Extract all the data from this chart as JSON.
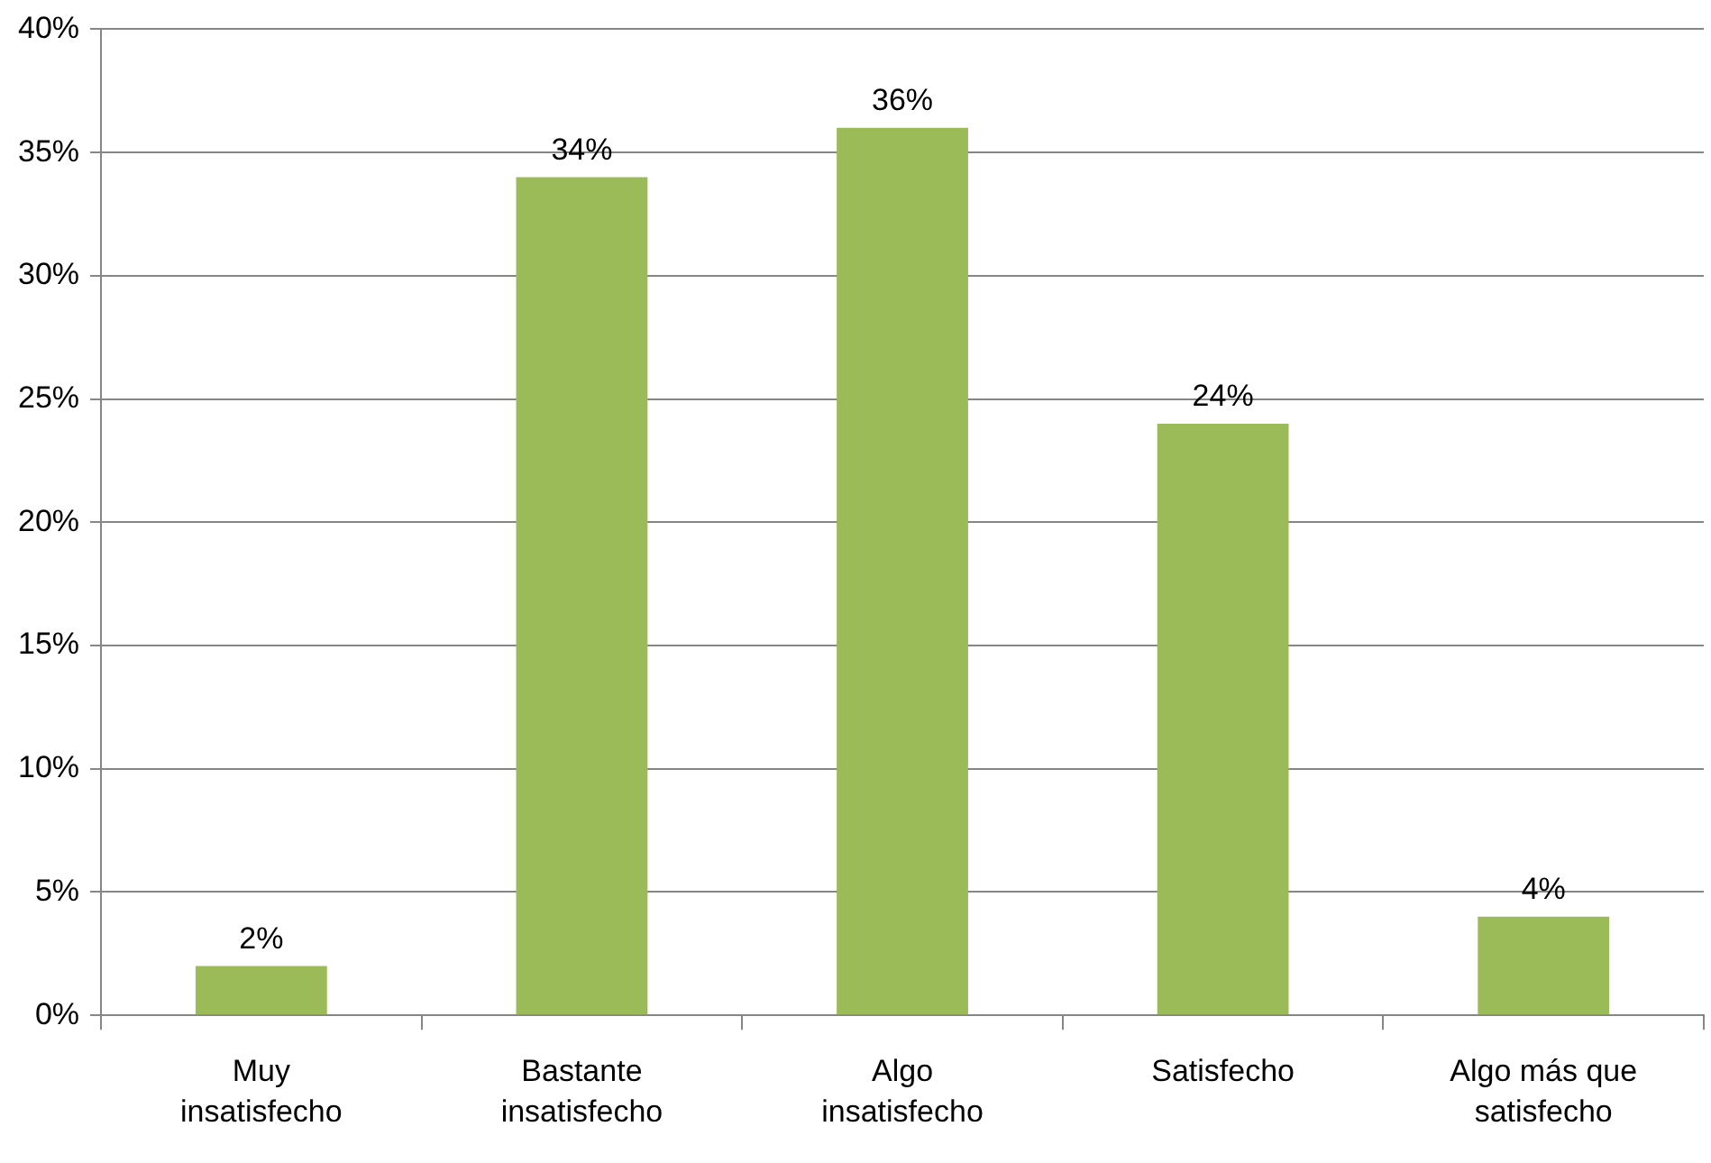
{
  "chart_data": {
    "type": "bar",
    "categories": [
      "Muy insatisfecho",
      "Bastante insatisfecho",
      "Algo insatisfecho",
      "Satisfecho",
      "Algo más que satisfecho"
    ],
    "values": [
      2,
      34,
      36,
      24,
      4
    ],
    "value_labels": [
      "2%",
      "34%",
      "36%",
      "24%",
      "4%"
    ],
    "color": "#9bbb59",
    "ylim": [
      0,
      40
    ],
    "yticks": [
      {
        "value": 0,
        "label": "0%"
      },
      {
        "value": 5,
        "label": "5%"
      },
      {
        "value": 10,
        "label": "10%"
      },
      {
        "value": 15,
        "label": "15%"
      },
      {
        "value": 20,
        "label": "20%"
      },
      {
        "value": 25,
        "label": "25%"
      },
      {
        "value": 30,
        "label": "30%"
      },
      {
        "value": 35,
        "label": "35%"
      },
      {
        "value": 40,
        "label": "40%"
      }
    ],
    "grid": "y",
    "legend": false
  }
}
